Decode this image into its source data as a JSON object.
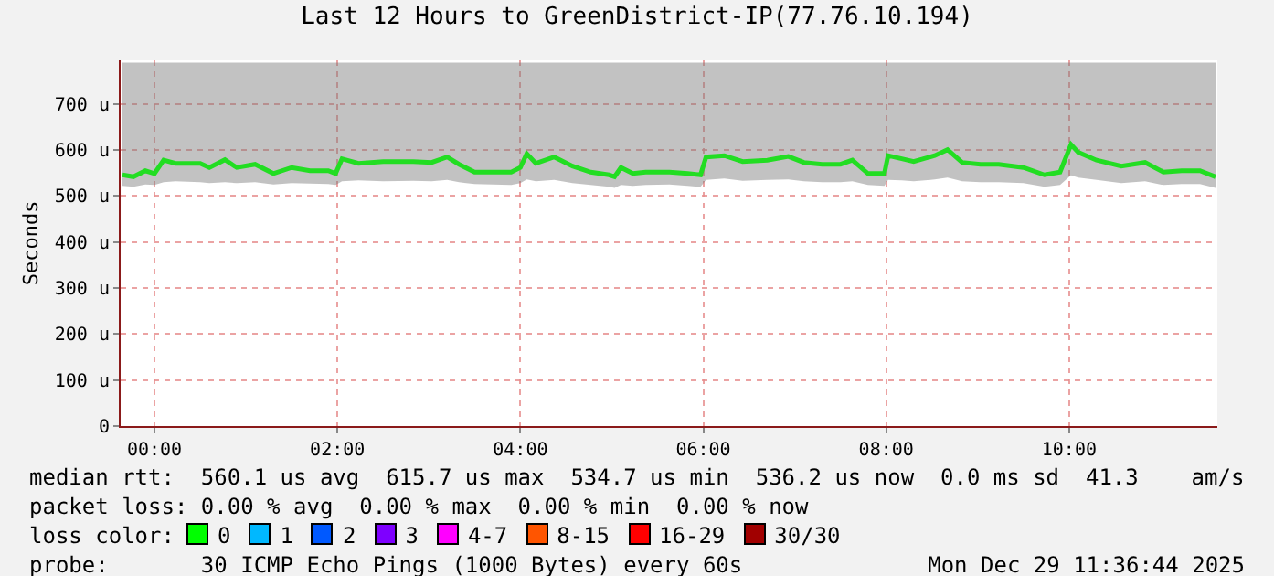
{
  "chart_data": {
    "type": "line",
    "title": "Last 12 Hours to GreenDistrict-IP(77.76.10.194)",
    "ylabel": "Seconds",
    "x": [
      -0.35,
      -0.23,
      -0.1,
      0.0,
      0.1,
      0.23,
      0.5,
      0.6,
      0.77,
      0.9,
      1.1,
      1.3,
      1.5,
      1.7,
      1.9,
      1.98,
      2.05,
      2.23,
      2.5,
      2.83,
      3.03,
      3.2,
      3.33,
      3.5,
      3.7,
      3.9,
      4.0,
      4.07,
      4.17,
      4.37,
      4.57,
      4.77,
      4.97,
      5.03,
      5.1,
      5.23,
      5.37,
      5.63,
      5.83,
      5.97,
      6.03,
      6.23,
      6.43,
      6.7,
      6.93,
      7.1,
      7.3,
      7.5,
      7.63,
      7.8,
      7.98,
      8.02,
      8.17,
      8.3,
      8.53,
      8.67,
      8.83,
      9.03,
      9.23,
      9.5,
      9.73,
      9.9,
      10.02,
      10.1,
      10.3,
      10.57,
      10.83,
      11.03,
      11.23,
      11.43,
      11.6
    ],
    "series": [
      {
        "color": "#22dd22",
        "values": [
          546,
          542,
          555,
          549,
          578,
          571,
          571,
          562,
          579,
          562,
          569,
          549,
          562,
          555,
          555,
          549,
          581,
          571,
          575,
          575,
          573,
          585,
          569,
          552,
          552,
          552,
          562,
          592,
          571,
          585,
          565,
          552,
          546,
          542,
          562,
          549,
          552,
          552,
          549,
          546,
          585,
          588,
          575,
          578,
          586,
          573,
          569,
          569,
          578,
          549,
          549,
          588,
          581,
          575,
          588,
          601,
          573,
          569,
          569,
          562,
          546,
          552,
          612,
          595,
          578,
          565,
          573,
          552,
          555,
          555,
          542
        ],
        "lower": [
          522,
          520,
          525,
          524,
          530,
          532,
          530,
          528,
          530,
          528,
          530,
          525,
          528,
          527,
          526,
          524,
          532,
          534,
          532,
          533,
          532,
          535,
          530,
          526,
          525,
          524,
          528,
          536,
          532,
          535,
          528,
          524,
          520,
          518,
          524,
          522,
          524,
          525,
          522,
          520,
          535,
          538,
          533,
          535,
          536,
          532,
          530,
          530,
          532,
          524,
          522,
          535,
          534,
          532,
          536,
          540,
          532,
          530,
          530,
          528,
          520,
          524,
          545,
          540,
          535,
          528,
          532,
          524,
          526,
          526,
          518
        ],
        "upper": [
          790,
          790,
          790,
          790,
          790,
          790,
          790,
          790,
          790,
          790,
          790,
          790,
          790,
          790,
          790,
          790,
          790,
          790,
          790,
          790,
          790,
          790,
          790,
          790,
          790,
          790,
          790,
          790,
          790,
          790,
          790,
          790,
          790,
          790,
          790,
          790,
          790,
          790,
          790,
          790,
          790,
          790,
          790,
          790,
          790,
          790,
          790,
          790,
          790,
          790,
          790,
          790,
          790,
          790,
          790,
          790,
          790,
          790,
          790,
          790,
          790,
          790,
          790,
          790,
          790,
          790,
          790,
          790,
          790,
          790,
          790
        ]
      }
    ],
    "xlim": [
      -0.37,
      11.62
    ],
    "xticks": [
      {
        "value": 0,
        "label": "00:00"
      },
      {
        "value": 2,
        "label": "02:00"
      },
      {
        "value": 4,
        "label": "04:00"
      },
      {
        "value": 6,
        "label": "06:00"
      },
      {
        "value": 8,
        "label": "08:00"
      },
      {
        "value": 10,
        "label": "10:00"
      }
    ],
    "ylim": [
      0,
      795
    ],
    "yticks": [
      0,
      {
        "value": 100,
        "label": "100 u"
      },
      {
        "value": 200,
        "label": "200 u"
      },
      {
        "value": 300,
        "label": "300 u"
      },
      {
        "value": 400,
        "label": "400 u"
      },
      {
        "value": 500,
        "label": "500 u"
      },
      {
        "value": 600,
        "label": "600 u"
      },
      {
        "value": 700,
        "label": "700 u"
      }
    ],
    "grid": true,
    "annotations": [
      "median rtt:  560.1 us avg  615.7 us max  534.7 us min  536.2 us now  0.0 ms sd  41.3    am/s",
      "packet loss: 0.00 % avg  0.00 % max  0.00 % min  0.00 % now",
      "loss color:",
      "0",
      "1",
      "2",
      "3",
      "4-7",
      "8-15",
      "16-29",
      "30/30",
      "probe:       30 ICMP Echo Pings (1000 Bytes) every 60s",
      "Mon Dec 29 11:36:44 2025"
    ]
  }
}
